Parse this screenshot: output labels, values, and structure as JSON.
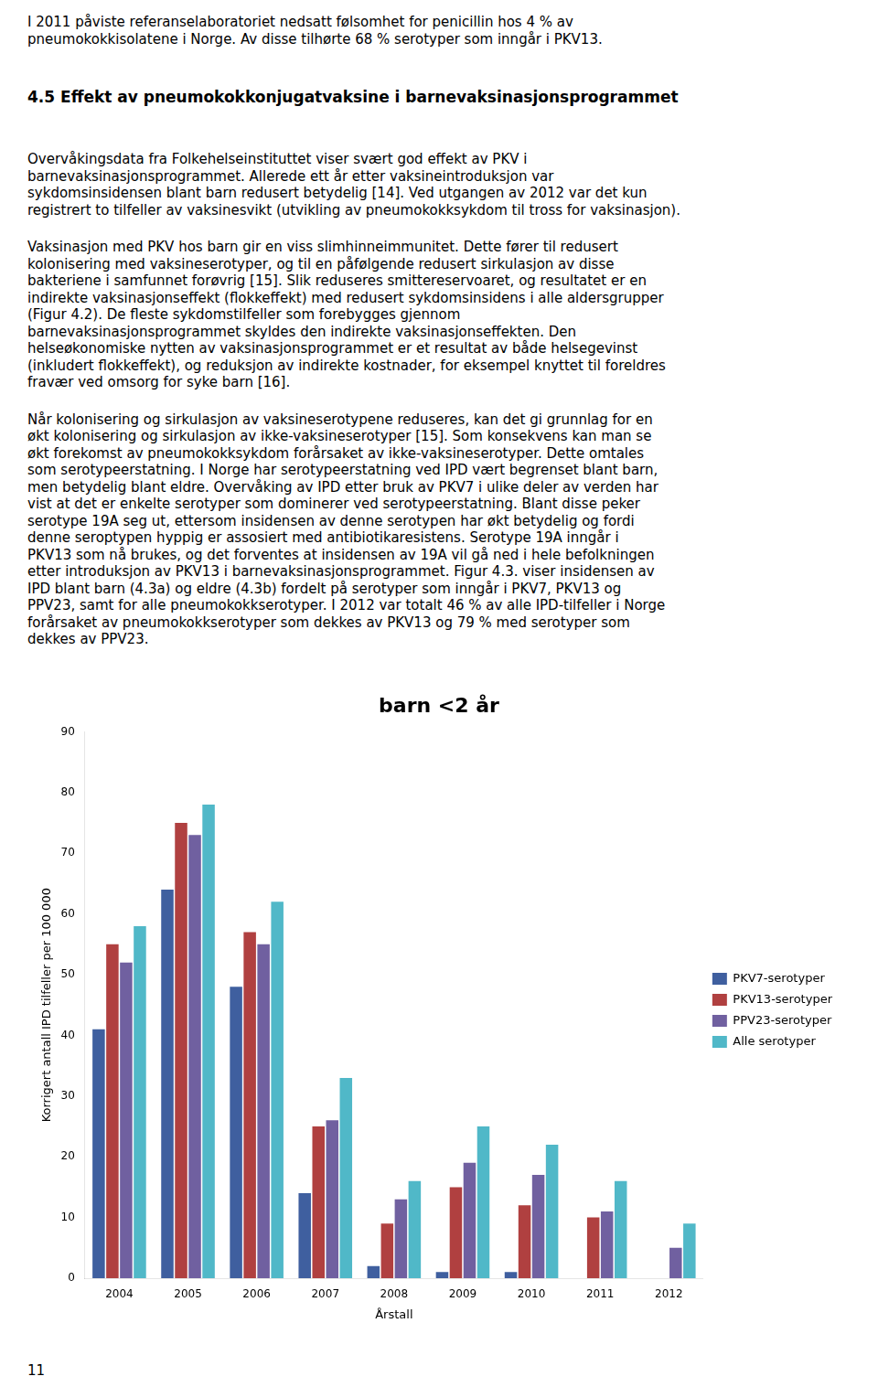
{
  "header_lines": [
    "I 2011 påviste referanselaboratoriet nedsatt følsomhet for penicillin hos 4 % av",
    "pneumokokkisolatene i Norge. Av disse tilhørte 68 % serotyper som inngår i PKV13."
  ],
  "section_title": "4.5   Effekt av pneumokokkonjugatvaksine i barnevaksinasjonsprogrammet",
  "paragraphs": [
    [
      "Overvåkingsdata fra Folkehelseinstituttet viser svært god effekt av PKV i",
      "barnevaksinasjonsprogrammet. Allerede ett år etter vaksineintroduksjon var",
      "sykdomsinsidensen blant barn redusert betydelig [14]. Ved utgangen av 2012 var det kun",
      "registrert to tilfeller av vaksinesvikt (utvikling av pneumokokksykdom til tross for vaksinasjon)."
    ],
    [
      "Vaksinasjon med PKV hos barn gir en viss slimhinneimmunitet. Dette fører til redusert",
      "kolonisering med vaksineserotyper, og til en påfølgende redusert sirkulasjon av disse",
      "bakteriene i samfunnet forøvrig [15]. Slik reduseres smittereservoaret, og resultatet er en",
      "indirekte vaksinasjonseffekt (flokkeffekt) med redusert sykdomsinsidens i alle aldersgrupper",
      "(Figur 4.2). De fleste sykdomstilfeller som forebygges gjennom",
      "barnevaksinasjonsprogrammet skyldes den indirekte vaksinasjonseffekten. Den",
      "helseøkonomiske nytten av vaksinasjonsprogrammet er et resultat av både helsegevinst",
      "(inkludert flokkeffekt), og reduksjon av indirekte kostnader, for eksempel knyttet til foreldres",
      "fravær ved omsorg for syke barn [16]."
    ],
    [
      "Når kolonisering og sirkulasjon av vaksineserotypene reduseres, kan det gi grunnlag for en",
      "økt kolonisering og sirkulasjon av ikke-vaksineserotyper [15]. Som konsekvens kan man se",
      "økt forekomst av pneumokokksykdom forårsaket av ikke-vaksineserotyper. Dette omtales",
      "som serotypeerstatning. I Norge har serotypeerstatning ved IPD vært begrenset blant barn,",
      "men betydelig blant eldre. Overvåking av IPD etter bruk av PKV7 i ulike deler av verden har",
      "vist at det er enkelte serotyper som dominerer ved serotypeerstatning. Blant disse peker",
      "serotype 19A seg ut, ettersom insidensen av denne serotypen har økt betydelig og fordi",
      "denne seroptypen hyppig er assosiert med antibiotikaresistens. Serotype 19A inngår i",
      "PKV13 som nå brukes, og det forventes at insidensen av 19A vil gå ned i hele befolkningen",
      "etter introduksjon av PKV13 i barnevaksinasjonsprogrammet. Figur 4.3. viser insidensen av",
      "IPD blant barn (4.3a) og eldre (4.3b) fordelt på serotyper som inngår i PKV7, PKV13 og",
      "PPV23, samt for alle pneumokokkserotyper. I 2012 var totalt 46 % av alle IPD-tilfeller i Norge",
      "forårsaket av pneumokokkserotyper som dekkes av PKV13 og 79 % med serotyper som",
      "dekkes av PPV23."
    ]
  ],
  "page_number": "11",
  "chart_data": {
    "type": "bar",
    "title": "barn <2 år",
    "x_label": "Årstall",
    "y_label": "Korrigert antall IPD tilfeller per 100 000",
    "categories": [
      "2004",
      "2005",
      "2006",
      "2007",
      "2008",
      "2009",
      "2010",
      "2011",
      "2012"
    ],
    "series": [
      {
        "name": "PKV7-serotyper",
        "color": "#3f5f9f",
        "values": [
          41,
          64,
          48,
          14,
          2,
          1,
          1,
          0,
          0
        ]
      },
      {
        "name": "PKV13-serotyper",
        "color": "#b04040",
        "values": [
          55,
          75,
          57,
          25,
          9,
          15,
          12,
          10,
          0
        ]
      },
      {
        "name": "PPV23-serotyper",
        "color": "#7060a0",
        "values": [
          52,
          73,
          55,
          26,
          13,
          19,
          17,
          11,
          5
        ]
      },
      {
        "name": "Alle serotyper",
        "color": "#50b8c8",
        "values": [
          58,
          78,
          62,
          33,
          16,
          25,
          22,
          16,
          9
        ]
      }
    ],
    "ylim": [
      0,
      90
    ],
    "yticks": [
      0,
      10,
      20,
      30,
      40,
      50,
      60,
      70,
      80,
      90
    ],
    "grid": false,
    "legend": "right"
  }
}
